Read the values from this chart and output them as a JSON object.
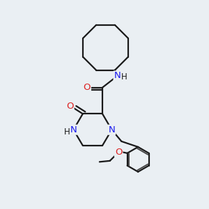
{
  "background_color": "#eaeff3",
  "line_color": "#1a1a1a",
  "atom_colors": {
    "N": "#1a1aee",
    "O": "#dd2222",
    "C": "#1a1a1a"
  },
  "line_width": 1.6,
  "font_size_atom": 9.5
}
